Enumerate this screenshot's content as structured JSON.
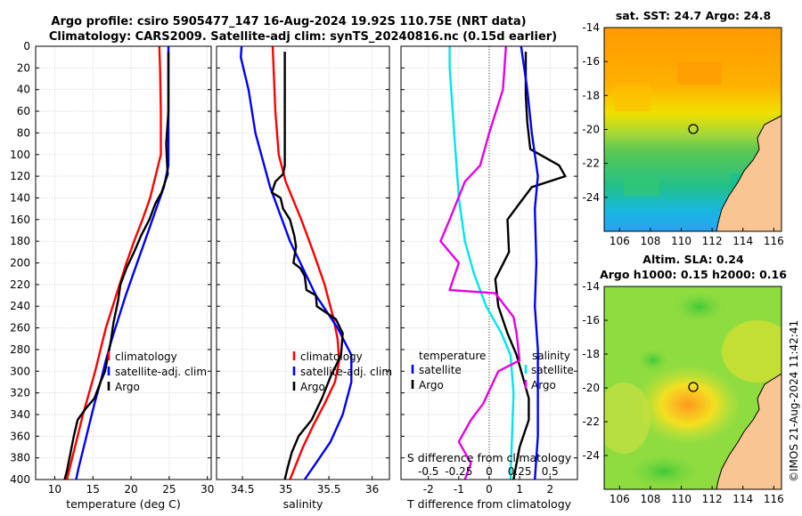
{
  "header": {
    "line1": "Argo profile: csiro 5905477_147 16-Aug-2024 19.92S 110.75E (NRT data)",
    "line2": "Climatology: CARS2009. Satellite-adj clim: synTS_20240816.nc (0.15d earlier)"
  },
  "watermark": "©IMOS 21-Aug-2024 11:42:41",
  "colors": {
    "climatology": "#ff0000",
    "satellite": "#0000ff",
    "argo": "#000000",
    "temp_diff": "#00e5ee",
    "sal_diff": "#e600e6",
    "land": "#f9c592"
  },
  "chart_data": [
    {
      "id": "temperature",
      "type": "line",
      "xlabel": "temperature (deg C)",
      "ylabel": "",
      "xlim": [
        7.5,
        30.5
      ],
      "ylim": [
        400,
        0
      ],
      "xticks": [
        10,
        15,
        20,
        25,
        30
      ],
      "yticks": [
        0,
        20,
        40,
        60,
        80,
        100,
        120,
        140,
        160,
        180,
        200,
        220,
        240,
        260,
        280,
        300,
        320,
        340,
        360,
        380,
        400
      ],
      "legend": [
        "climatology",
        "satellite-adj. clim",
        "Argo"
      ],
      "series": [
        {
          "name": "climatology",
          "color": "#ff0000",
          "points": [
            [
              23.7,
              0
            ],
            [
              23.8,
              20
            ],
            [
              23.9,
              60
            ],
            [
              23.9,
              100
            ],
            [
              23.2,
              120
            ],
            [
              22.5,
              140
            ],
            [
              21.5,
              160
            ],
            [
              20.4,
              180
            ],
            [
              19.4,
              200
            ],
            [
              18.5,
              220
            ],
            [
              17.6,
              240
            ],
            [
              16.7,
              260
            ],
            [
              16.0,
              280
            ],
            [
              15.3,
              300
            ],
            [
              14.5,
              320
            ],
            [
              13.7,
              340
            ],
            [
              13.0,
              360
            ],
            [
              12.3,
              380
            ],
            [
              11.6,
              400
            ]
          ]
        },
        {
          "name": "satellite-adj. clim",
          "color": "#0000ff",
          "points": [
            [
              24.9,
              0
            ],
            [
              24.9,
              40
            ],
            [
              24.9,
              90
            ],
            [
              24.9,
              110
            ],
            [
              24.3,
              130
            ],
            [
              23.3,
              150
            ],
            [
              22.3,
              170
            ],
            [
              21.3,
              190
            ],
            [
              20.3,
              210
            ],
            [
              19.3,
              230
            ],
            [
              18.4,
              250
            ],
            [
              17.5,
              270
            ],
            [
              16.7,
              290
            ],
            [
              16.0,
              310
            ],
            [
              15.2,
              330
            ],
            [
              14.5,
              350
            ],
            [
              13.8,
              370
            ],
            [
              13.1,
              390
            ],
            [
              12.8,
              400
            ]
          ]
        },
        {
          "name": "Argo",
          "color": "#000000",
          "points": [
            [
              24.9,
              5
            ],
            [
              24.9,
              60
            ],
            [
              24.6,
              90
            ],
            [
              24.7,
              105
            ],
            [
              24.8,
              118
            ],
            [
              24.0,
              135
            ],
            [
              23.2,
              145
            ],
            [
              22.4,
              160
            ],
            [
              21.3,
              175
            ],
            [
              20.4,
              190
            ],
            [
              19.4,
              205
            ],
            [
              18.6,
              220
            ],
            [
              18.3,
              235
            ],
            [
              17.7,
              255
            ],
            [
              17.4,
              270
            ],
            [
              17.0,
              285
            ],
            [
              16.6,
              300
            ],
            [
              16.0,
              310
            ],
            [
              15.2,
              325
            ],
            [
              14.0,
              335
            ],
            [
              13.0,
              345
            ],
            [
              12.5,
              360
            ],
            [
              12.0,
              378
            ],
            [
              11.6,
              392
            ],
            [
              11.3,
              400
            ]
          ]
        }
      ]
    },
    {
      "id": "salinity",
      "type": "line",
      "xlabel": "salinity",
      "ylabel": "",
      "xlim": [
        34.2,
        36.2
      ],
      "ylim": [
        400,
        0
      ],
      "xticks": [
        34.5,
        35,
        35.5,
        36
      ],
      "xtick_labels": [
        "34.5",
        "35",
        "35.5",
        "36"
      ],
      "legend": [
        "climatology",
        "satellite-adj. clim",
        "Argo"
      ],
      "series": [
        {
          "name": "climatology",
          "color": "#ff0000",
          "points": [
            [
              34.85,
              0
            ],
            [
              34.86,
              20
            ],
            [
              34.88,
              60
            ],
            [
              34.92,
              100
            ],
            [
              35.0,
              125
            ],
            [
              35.18,
              160
            ],
            [
              35.32,
              190
            ],
            [
              35.45,
              220
            ],
            [
              35.55,
              250
            ],
            [
              35.6,
              270
            ],
            [
              35.62,
              290
            ],
            [
              35.57,
              310
            ],
            [
              35.45,
              330
            ],
            [
              35.32,
              350
            ],
            [
              35.2,
              370
            ],
            [
              35.1,
              390
            ],
            [
              35.05,
              400
            ]
          ]
        },
        {
          "name": "satellite-adj. clim",
          "color": "#0000ff",
          "points": [
            [
              34.49,
              0
            ],
            [
              34.48,
              10
            ],
            [
              34.57,
              40
            ],
            [
              34.65,
              80
            ],
            [
              34.82,
              130
            ],
            [
              35.05,
              180
            ],
            [
              35.35,
              230
            ],
            [
              35.6,
              260
            ],
            [
              35.76,
              285
            ],
            [
              35.76,
              310
            ],
            [
              35.66,
              340
            ],
            [
              35.52,
              365
            ],
            [
              35.35,
              385
            ],
            [
              35.22,
              400
            ]
          ]
        },
        {
          "name": "Argo",
          "color": "#000000",
          "points": [
            [
              34.99,
              5
            ],
            [
              34.99,
              50
            ],
            [
              34.99,
              90
            ],
            [
              34.99,
              110
            ],
            [
              34.97,
              118
            ],
            [
              34.88,
              125
            ],
            [
              34.84,
              135
            ],
            [
              34.94,
              140
            ],
            [
              34.97,
              150
            ],
            [
              35.05,
              160
            ],
            [
              35.1,
              175
            ],
            [
              35.12,
              185
            ],
            [
              35.09,
              200
            ],
            [
              35.17,
              205
            ],
            [
              35.22,
              212
            ],
            [
              35.24,
              225
            ],
            [
              35.35,
              230
            ],
            [
              35.36,
              240
            ],
            [
              35.58,
              252
            ],
            [
              35.66,
              265
            ],
            [
              35.64,
              285
            ],
            [
              35.52,
              305
            ],
            [
              35.42,
              325
            ],
            [
              35.3,
              345
            ],
            [
              35.15,
              360
            ],
            [
              35.07,
              375
            ],
            [
              35.02,
              390
            ],
            [
              34.99,
              400
            ]
          ]
        }
      ]
    },
    {
      "id": "differences",
      "type": "line",
      "xlabel": "T difference from climatology",
      "xlabel_top": "S difference from climatology",
      "xlim": [
        -2.9,
        2.9
      ],
      "ylim": [
        400,
        0
      ],
      "xticks": [
        -2,
        -1,
        0,
        1,
        2
      ],
      "xticks_top_labels": [
        "-0.5",
        "-0.25",
        "0",
        "0.25",
        "0.5"
      ],
      "legend_left_title": "temperature",
      "legend_right_title": "salinity",
      "legend_left": [
        "satellite",
        "Argo"
      ],
      "legend_right": [
        "satellite",
        "Argo"
      ],
      "series": [
        {
          "name": "temperature satellite",
          "color": "#00e5ee",
          "points": [
            [
              -1.3,
              0
            ],
            [
              -1.3,
              20
            ],
            [
              -1.2,
              60
            ],
            [
              -1.1,
              100
            ],
            [
              -1.0,
              140
            ],
            [
              -0.8,
              180
            ],
            [
              -0.5,
              210
            ],
            [
              -0.1,
              240
            ],
            [
              0.4,
              265
            ],
            [
              0.7,
              285
            ],
            [
              0.8,
              320
            ],
            [
              0.75,
              360
            ],
            [
              0.7,
              400
            ]
          ]
        },
        {
          "name": "temperature Argo",
          "color": "#000000",
          "points": [
            [
              1.2,
              5
            ],
            [
              1.2,
              45
            ],
            [
              1.25,
              70
            ],
            [
              1.35,
              95
            ],
            [
              2.3,
              110
            ],
            [
              2.5,
              120
            ],
            [
              1.4,
              130
            ],
            [
              1.0,
              145
            ],
            [
              0.6,
              160
            ],
            [
              0.65,
              190
            ],
            [
              0.2,
              215
            ],
            [
              0.3,
              240
            ],
            [
              0.6,
              265
            ],
            [
              0.9,
              285
            ],
            [
              1.1,
              305
            ],
            [
              1.3,
              325
            ],
            [
              1.3,
              345
            ],
            [
              1.0,
              370
            ],
            [
              0.8,
              400
            ]
          ]
        },
        {
          "name": "salinity satellite",
          "color": "#0000ff",
          "points": [
            [
              1.05,
              0
            ],
            [
              1.25,
              40
            ],
            [
              1.4,
              80
            ],
            [
              1.6,
              120
            ],
            [
              1.5,
              150
            ],
            [
              1.55,
              200
            ],
            [
              1.5,
              240
            ],
            [
              1.6,
              280
            ],
            [
              1.6,
              320
            ],
            [
              1.6,
              360
            ],
            [
              1.5,
              400
            ]
          ]
        },
        {
          "name": "salinity Argo",
          "color": "#e600e6",
          "points": [
            [
              0.55,
              0
            ],
            [
              0.45,
              40
            ],
            [
              0.0,
              80
            ],
            [
              -0.3,
              110
            ],
            [
              -0.8,
              125
            ],
            [
              -1.3,
              160
            ],
            [
              -1.6,
              180
            ],
            [
              -1.0,
              200
            ],
            [
              -1.3,
              225
            ],
            [
              0.2,
              228
            ],
            [
              0.8,
              250
            ],
            [
              0.9,
              265
            ],
            [
              1.0,
              290
            ],
            [
              0.3,
              300
            ],
            [
              -0.2,
              330
            ],
            [
              -0.6,
              345
            ],
            [
              -1.0,
              365
            ],
            [
              -0.6,
              385
            ],
            [
              -0.8,
              400
            ]
          ]
        }
      ]
    },
    {
      "id": "sst_map",
      "type": "heatmap",
      "title": "sat. SST: 24.7 Argo: 24.8",
      "xticks": [
        106,
        108,
        110,
        112,
        114,
        116
      ],
      "yticks": [
        -14,
        -16,
        -18,
        -20,
        -22,
        -24
      ],
      "xlim": [
        105,
        116.5
      ],
      "ylim": [
        -26,
        -14
      ],
      "argo_position": [
        110.75,
        -19.92
      ]
    },
    {
      "id": "sla_map",
      "type": "heatmap",
      "title_line1": "Altim. SLA: 0.24",
      "title_line2": "Argo h1000: 0.15 h2000: 0.16",
      "xticks": [
        106,
        108,
        110,
        112,
        114,
        116
      ],
      "yticks": [
        -14,
        -16,
        -18,
        -20,
        -22,
        -24
      ],
      "xlim": [
        105,
        116.5
      ],
      "ylim": [
        -26,
        -14
      ],
      "argo_position": [
        110.75,
        -19.92
      ]
    }
  ]
}
